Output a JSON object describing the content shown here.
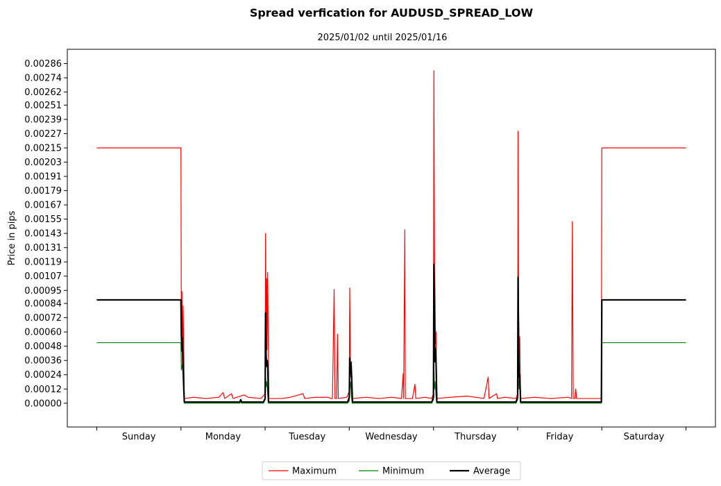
{
  "chart_data": {
    "type": "line",
    "title": "Spread verfication for AUDUSD_SPREAD_LOW",
    "subtitle": "2025/01/02 until 2025/01/16",
    "ylabel": "Price in pips",
    "xlabel": "",
    "ylim": [
      -0.0002,
      0.00298
    ],
    "xlim": [
      -0.35,
      7.35
    ],
    "y_ticks": [
      0.0,
      0.00012,
      0.00024,
      0.00036,
      0.00048,
      0.0006,
      0.00072,
      0.00084,
      0.00095,
      0.00107,
      0.00119,
      0.00131,
      0.00143,
      0.00155,
      0.00167,
      0.00179,
      0.00191,
      0.00203,
      0.00215,
      0.00227,
      0.00239,
      0.00251,
      0.00262,
      0.00274,
      0.00286
    ],
    "y_tick_labels": [
      "0.00000",
      "0.00012",
      "0.00024",
      "0.00036",
      "0.00048",
      "0.00060",
      "0.00072",
      "0.00084",
      "0.00095",
      "0.00107",
      "0.00119",
      "0.00131",
      "0.00143",
      "0.00155",
      "0.00167",
      "0.00179",
      "0.00191",
      "0.00203",
      "0.00215",
      "0.00227",
      "0.00239",
      "0.00251",
      "0.00262",
      "0.00274",
      "0.00286"
    ],
    "x_ticks": [
      0,
      1,
      2,
      3,
      4,
      5,
      6,
      7
    ],
    "categories": [
      "Sunday",
      "Monday",
      "Tuesday",
      "Wednesday",
      "Thursday",
      "Friday",
      "Saturday"
    ],
    "category_positions": [
      0.5,
      1.5,
      2.5,
      3.5,
      4.5,
      5.5,
      6.5
    ],
    "grid": false,
    "legend_position": "bottom-center",
    "series": [
      {
        "name": "Maximum",
        "color": "#ff0000",
        "linewidth": 1.2,
        "points": [
          [
            0,
            0.00215
          ],
          [
            1.0,
            0.00215
          ],
          [
            1.005,
            0.00052
          ],
          [
            1.012,
            0.00094
          ],
          [
            1.018,
            0.0003
          ],
          [
            1.025,
            0.00082
          ],
          [
            1.035,
            0.0004
          ],
          [
            1.04,
            4e-05
          ],
          [
            1.15,
            5e-05
          ],
          [
            1.3,
            4e-05
          ],
          [
            1.45,
            5e-05
          ],
          [
            1.5,
            9e-05
          ],
          [
            1.52,
            4e-05
          ],
          [
            1.6,
            8e-05
          ],
          [
            1.62,
            4e-05
          ],
          [
            1.75,
            7e-05
          ],
          [
            1.8,
            5e-05
          ],
          [
            1.95,
            4e-05
          ],
          [
            2.0,
            8e-05
          ],
          [
            2.005,
            0.00143
          ],
          [
            2.012,
            0.00055
          ],
          [
            2.018,
            0.00105
          ],
          [
            2.022,
            0.00045
          ],
          [
            2.03,
            0.0011
          ],
          [
            2.038,
            0.00048
          ],
          [
            2.045,
            4e-05
          ],
          [
            2.2,
            4e-05
          ],
          [
            2.3,
            5e-05
          ],
          [
            2.45,
            8e-05
          ],
          [
            2.47,
            4e-05
          ],
          [
            2.6,
            5e-05
          ],
          [
            2.75,
            5e-05
          ],
          [
            2.78,
            4e-05
          ],
          [
            2.8,
            4e-05
          ],
          [
            2.82,
            0.00096
          ],
          [
            2.83,
            4e-05
          ],
          [
            2.85,
            4e-05
          ],
          [
            2.86,
            0.00058
          ],
          [
            2.87,
            4e-05
          ],
          [
            2.97,
            5e-05
          ],
          [
            3.0,
            0.0001
          ],
          [
            3.005,
            0.00097
          ],
          [
            3.012,
            0.00042
          ],
          [
            3.018,
            0.00022
          ],
          [
            3.025,
            0.00035
          ],
          [
            3.035,
            8e-05
          ],
          [
            3.04,
            4e-05
          ],
          [
            3.2,
            5e-05
          ],
          [
            3.35,
            4e-05
          ],
          [
            3.5,
            5e-05
          ],
          [
            3.62,
            4e-05
          ],
          [
            3.64,
            0.00025
          ],
          [
            3.645,
            4e-05
          ],
          [
            3.66,
            0.00146
          ],
          [
            3.665,
            4e-05
          ],
          [
            3.75,
            4e-05
          ],
          [
            3.78,
            0.00016
          ],
          [
            3.79,
            4e-05
          ],
          [
            3.9,
            5e-05
          ],
          [
            3.98,
            4e-05
          ],
          [
            4.0,
            8e-05
          ],
          [
            4.005,
            0.0028
          ],
          [
            4.012,
            0.0012
          ],
          [
            4.018,
            0.00095
          ],
          [
            4.025,
            0.0005
          ],
          [
            4.03,
            0.0006
          ],
          [
            4.04,
            4e-05
          ],
          [
            4.2,
            5e-05
          ],
          [
            4.4,
            6e-05
          ],
          [
            4.6,
            4e-05
          ],
          [
            4.65,
            0.00022
          ],
          [
            4.66,
            4e-05
          ],
          [
            4.75,
            8e-05
          ],
          [
            4.76,
            4e-05
          ],
          [
            4.85,
            5e-05
          ],
          [
            4.98,
            4e-05
          ],
          [
            5.0,
            8e-05
          ],
          [
            5.005,
            0.00229
          ],
          [
            5.012,
            0.00075
          ],
          [
            5.018,
            0.0004
          ],
          [
            5.025,
            0.00056
          ],
          [
            5.035,
            4e-05
          ],
          [
            5.2,
            5e-05
          ],
          [
            5.4,
            4e-05
          ],
          [
            5.6,
            5e-05
          ],
          [
            5.64,
            4e-05
          ],
          [
            5.65,
            0.00153
          ],
          [
            5.66,
            4e-05
          ],
          [
            5.68,
            4e-05
          ],
          [
            5.69,
            0.00012
          ],
          [
            5.7,
            4e-05
          ],
          [
            5.85,
            4e-05
          ],
          [
            5.995,
            4e-05
          ],
          [
            6.0,
            0.00215
          ],
          [
            7.0,
            0.00215
          ]
        ]
      },
      {
        "name": "Minimum",
        "color": "#008000",
        "linewidth": 1.2,
        "points": [
          [
            0,
            0.00051
          ],
          [
            1.0,
            0.00051
          ],
          [
            1.005,
            0.00028
          ],
          [
            1.015,
            0.00032
          ],
          [
            1.025,
            0.00026
          ],
          [
            1.035,
            0.0001
          ],
          [
            1.04,
            0.0
          ],
          [
            1.7,
            0.0
          ],
          [
            1.71,
            3e-05
          ],
          [
            1.72,
            0.0
          ],
          [
            1.98,
            0.0
          ],
          [
            2.0,
            3e-05
          ],
          [
            2.005,
            0.00024
          ],
          [
            2.012,
            0.00014
          ],
          [
            2.02,
            0.00018
          ],
          [
            2.03,
            8e-05
          ],
          [
            2.04,
            0.0
          ],
          [
            2.98,
            0.0
          ],
          [
            3.0,
            2e-05
          ],
          [
            3.005,
            0.00012
          ],
          [
            3.015,
            0.00018
          ],
          [
            3.025,
            6e-05
          ],
          [
            3.035,
            0.0
          ],
          [
            3.98,
            0.0
          ],
          [
            4.0,
            3e-05
          ],
          [
            4.005,
            0.00032
          ],
          [
            4.012,
            0.00012
          ],
          [
            4.02,
            0.00018
          ],
          [
            4.03,
            6e-05
          ],
          [
            4.04,
            0.0
          ],
          [
            4.98,
            0.0
          ],
          [
            5.0,
            3e-05
          ],
          [
            5.005,
            0.00035
          ],
          [
            5.015,
            0.00012
          ],
          [
            5.025,
            0.0002
          ],
          [
            5.035,
            0.0
          ],
          [
            5.995,
            0.0
          ],
          [
            6.0,
            0.00051
          ],
          [
            7.0,
            0.00051
          ]
        ]
      },
      {
        "name": "Average",
        "color": "#000000",
        "linewidth": 2.2,
        "points": [
          [
            0,
            0.00087
          ],
          [
            1.0,
            0.00087
          ],
          [
            1.005,
            0.00057
          ],
          [
            1.012,
            0.00044
          ],
          [
            1.018,
            0.00055
          ],
          [
            1.025,
            0.0003
          ],
          [
            1.035,
            0.0001
          ],
          [
            1.04,
            1e-05
          ],
          [
            1.7,
            1e-05
          ],
          [
            1.71,
            3e-05
          ],
          [
            1.72,
            1e-05
          ],
          [
            1.98,
            1e-05
          ],
          [
            2.0,
            4e-05
          ],
          [
            2.005,
            0.00076
          ],
          [
            2.012,
            0.0004
          ],
          [
            2.018,
            0.00031
          ],
          [
            2.025,
            0.00036
          ],
          [
            2.032,
            0.00029
          ],
          [
            2.04,
            1e-05
          ],
          [
            2.98,
            1e-05
          ],
          [
            3.0,
            5e-05
          ],
          [
            3.005,
            0.00038
          ],
          [
            3.012,
            0.00025
          ],
          [
            3.02,
            0.00034
          ],
          [
            3.028,
            0.00022
          ],
          [
            3.038,
            1e-05
          ],
          [
            3.98,
            1e-05
          ],
          [
            4.0,
            5e-05
          ],
          [
            4.005,
            0.00117
          ],
          [
            4.012,
            0.00062
          ],
          [
            4.018,
            0.00035
          ],
          [
            4.025,
            0.00046
          ],
          [
            4.032,
            0.0003
          ],
          [
            4.04,
            1e-05
          ],
          [
            4.98,
            1e-05
          ],
          [
            5.0,
            5e-05
          ],
          [
            5.005,
            0.00106
          ],
          [
            5.012,
            0.00045
          ],
          [
            5.018,
            0.00022
          ],
          [
            5.025,
            0.00024
          ],
          [
            5.035,
            1e-05
          ],
          [
            5.995,
            1e-05
          ],
          [
            6.0,
            0.00087
          ],
          [
            7.0,
            0.00087
          ]
        ]
      }
    ]
  }
}
